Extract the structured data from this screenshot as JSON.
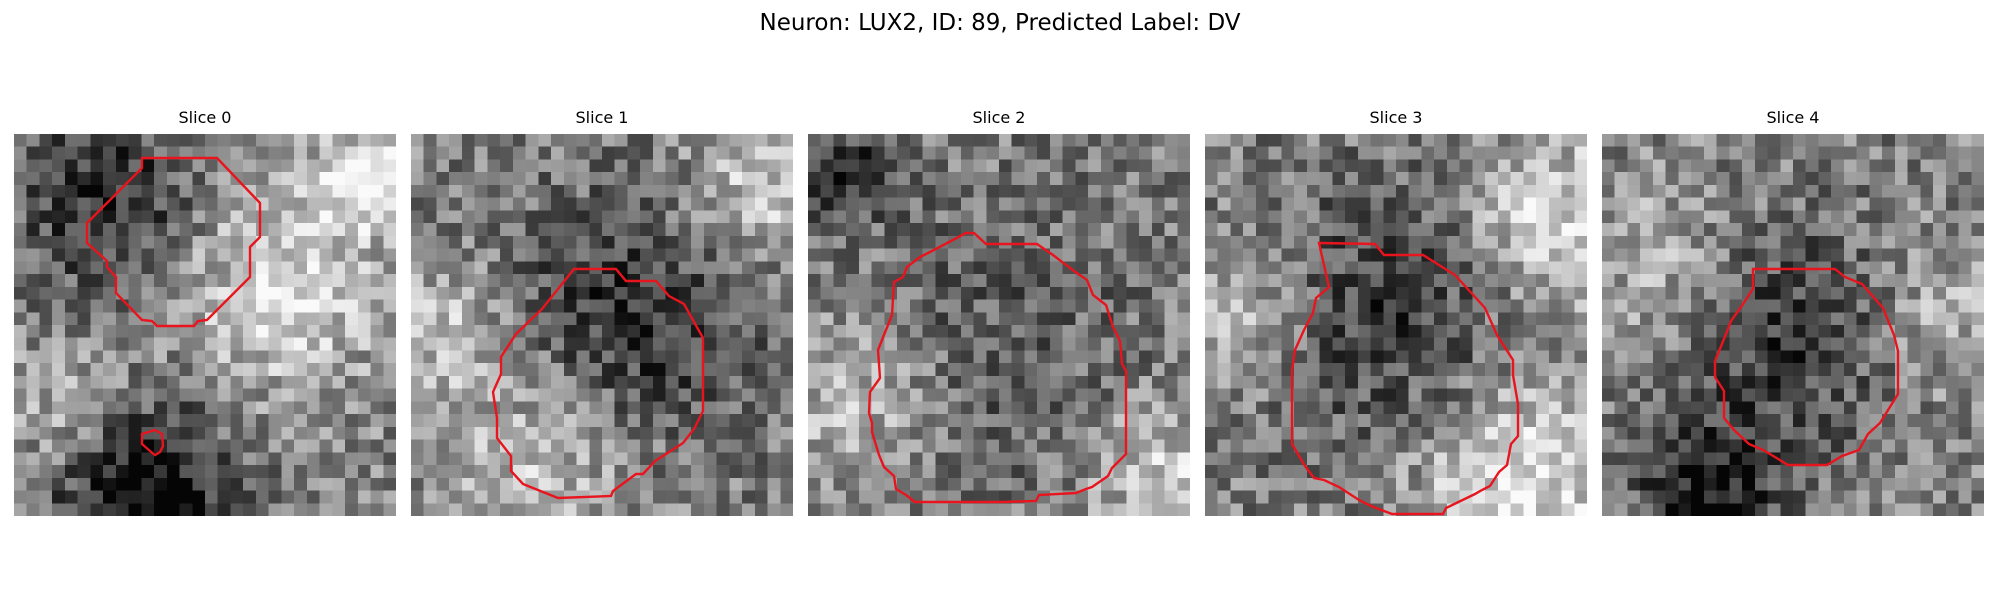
{
  "title": "Neuron: LUX2, ID: 89, Predicted Label: DV",
  "slices": [
    {
      "label": "Slice 0",
      "contour_color": "#e8141e"
    },
    {
      "label": "Slice 1",
      "contour_color": "#e8141e"
    },
    {
      "label": "Slice 2",
      "contour_color": "#e8141e"
    },
    {
      "label": "Slice 3",
      "contour_color": "#e8141e"
    },
    {
      "label": "Slice 4",
      "contour_color": "#e8141e"
    }
  ],
  "colormap": "gray"
}
